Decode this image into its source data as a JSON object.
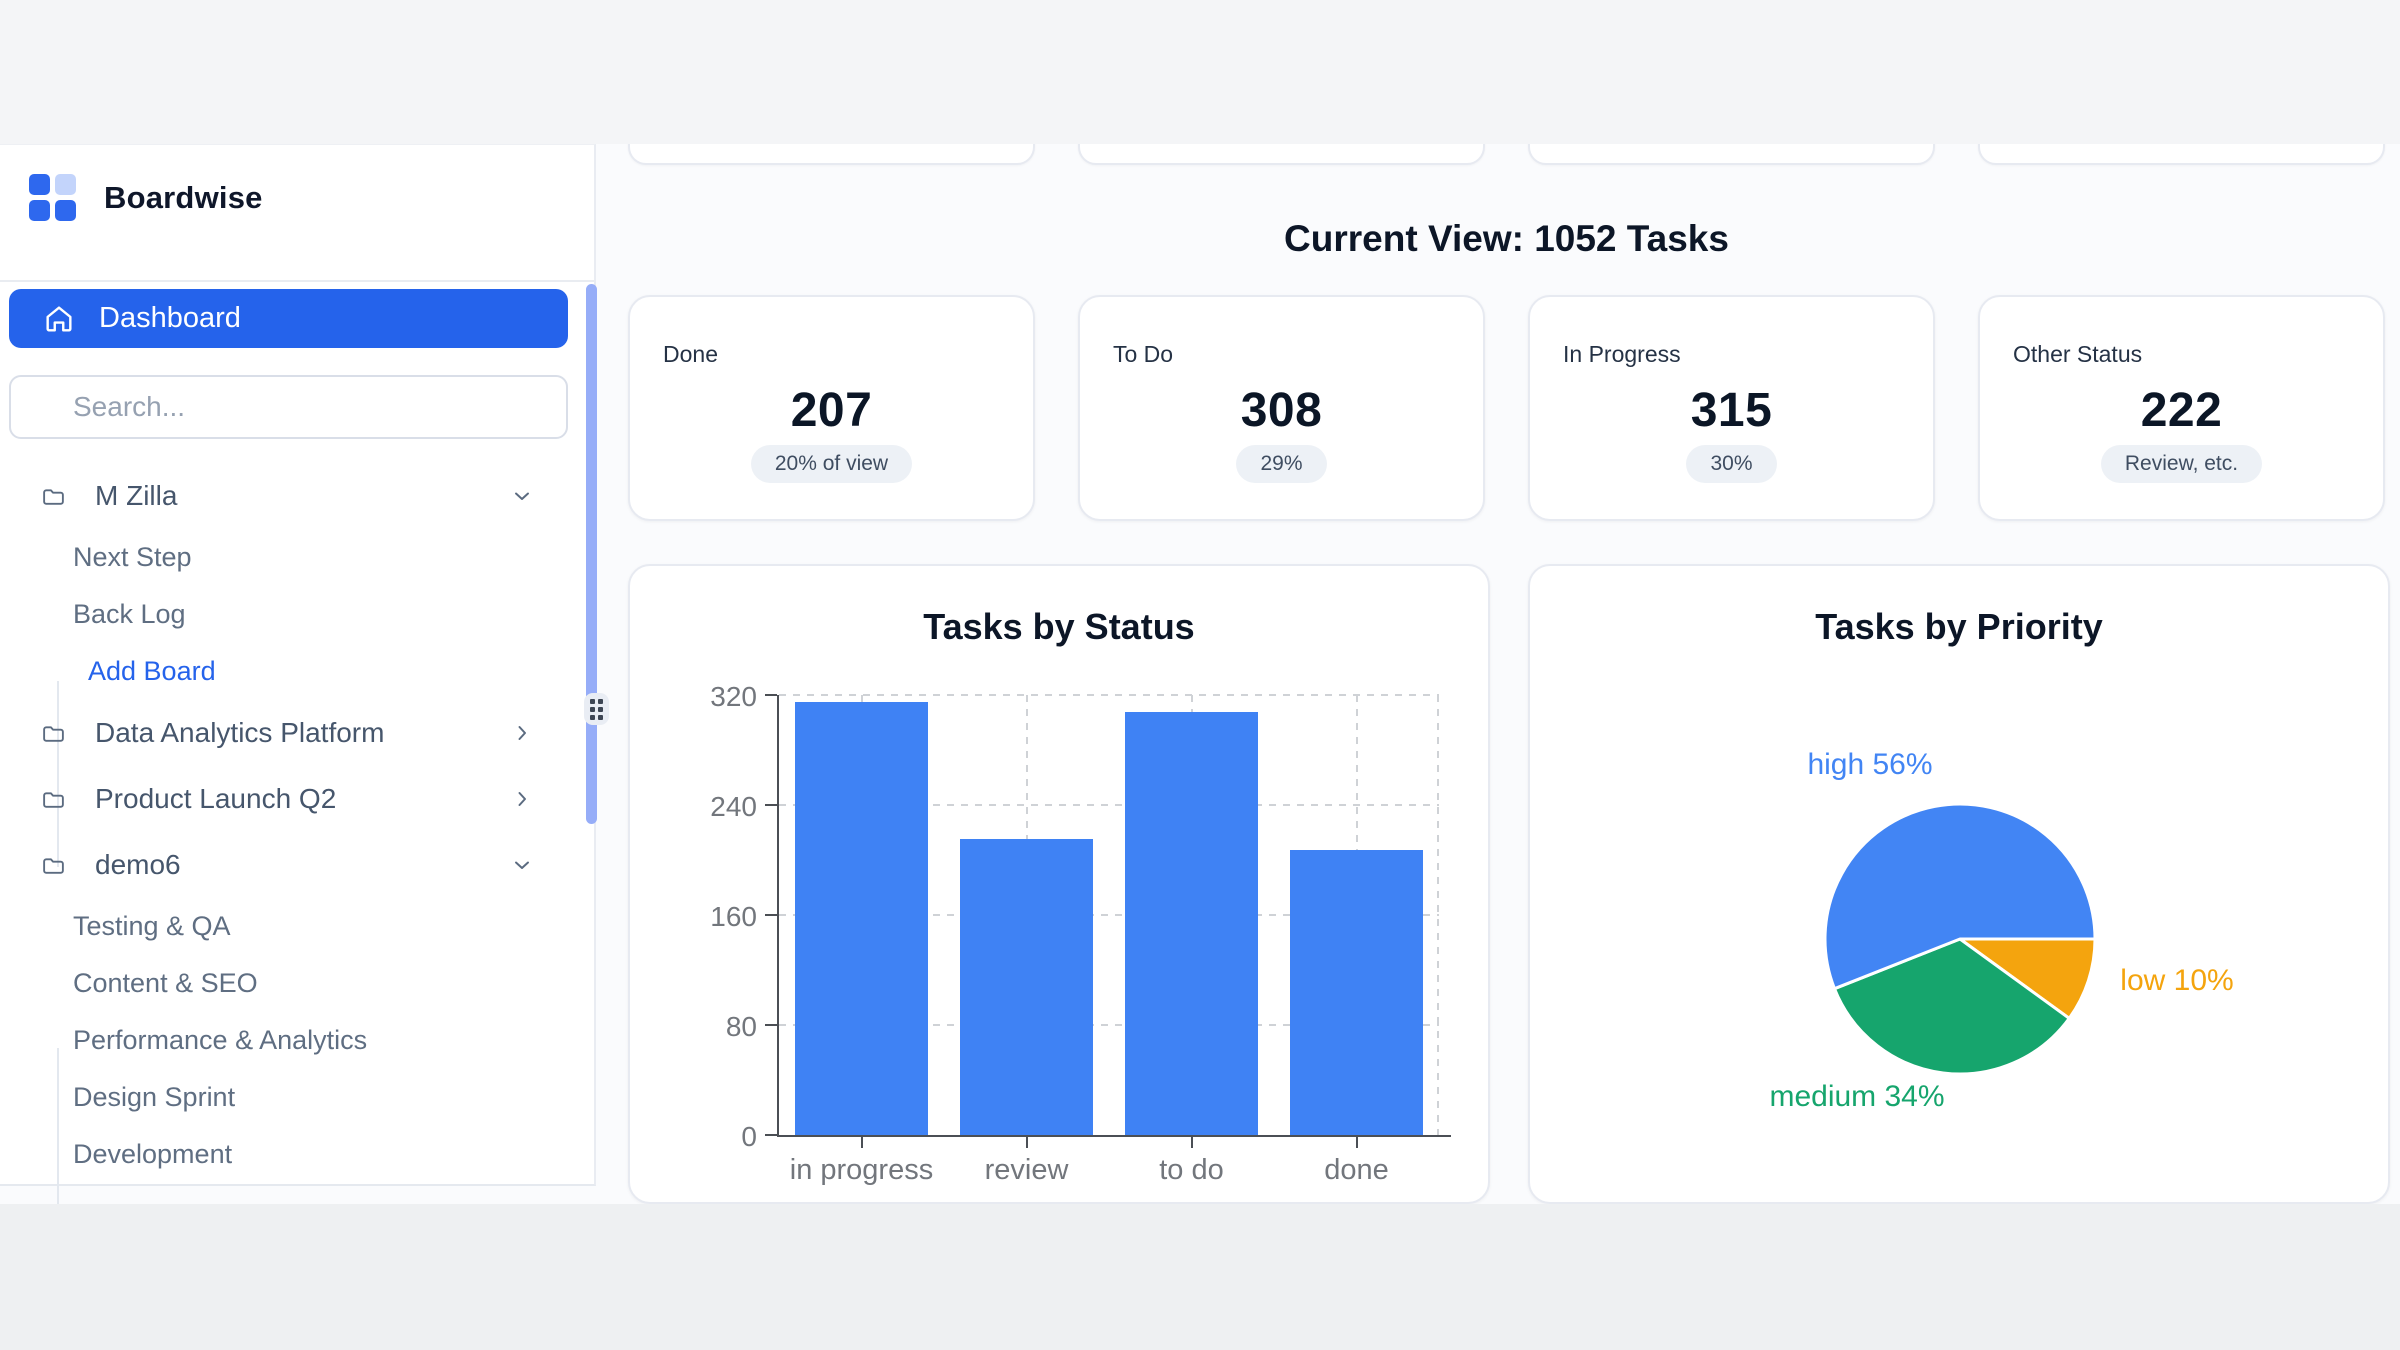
{
  "brand": {
    "name": "Boardwise",
    "logo_colors": [
      "#2e68ee",
      "#c3d4fb",
      "#2e68ee",
      "#2e68ee"
    ]
  },
  "sidebar": {
    "active_item": {
      "label": "Dashboard",
      "icon": "home-icon"
    },
    "search": {
      "placeholder": "Search..."
    },
    "sections": [
      {
        "label": "M Zilla",
        "icon": "folder-icon",
        "state": "expanded",
        "children": [
          {
            "label": "Next Step",
            "accent": false
          },
          {
            "label": "Back Log",
            "accent": false
          },
          {
            "label": "Add Board",
            "accent": true
          }
        ]
      },
      {
        "label": "Data Analytics Platform",
        "icon": "folder-icon",
        "state": "collapsed",
        "children": []
      },
      {
        "label": "Product Launch Q2",
        "icon": "folder-icon",
        "state": "collapsed",
        "children": []
      },
      {
        "label": "demo6",
        "icon": "folder-icon",
        "state": "expanded",
        "children": [
          {
            "label": "Testing & QA",
            "accent": false
          },
          {
            "label": "Content & SEO",
            "accent": false
          },
          {
            "label": "Performance & Analytics",
            "accent": false
          },
          {
            "label": "Design Sprint",
            "accent": false
          },
          {
            "label": "Development",
            "accent": false
          }
        ]
      }
    ]
  },
  "header": {
    "title": "Current View: 1052 Tasks"
  },
  "stats": [
    {
      "label": "Done",
      "value": "207",
      "badge": "20% of view"
    },
    {
      "label": "To Do",
      "value": "308",
      "badge": "29%"
    },
    {
      "label": "In Progress",
      "value": "315",
      "badge": "30%"
    },
    {
      "label": "Other Status",
      "value": "222",
      "badge": "Review, etc."
    }
  ],
  "chart_data": [
    {
      "type": "bar",
      "title": "Tasks by Status",
      "categories": [
        "in progress",
        "review",
        "to do",
        "done"
      ],
      "values": [
        315,
        215,
        308,
        207
      ],
      "xlabel": "",
      "ylabel": "",
      "ylim": [
        0,
        320
      ],
      "yticks": [
        0,
        80,
        160,
        240,
        320
      ],
      "grid": "dashed, horizontal at yticks and vertical at category centers plus right edge",
      "bar_color": "#3f82f4",
      "legend": "none"
    },
    {
      "type": "pie",
      "title": "Tasks by Priority",
      "slices": [
        {
          "name": "low",
          "pct": 10,
          "color": "#f4a40e",
          "label_text": "low 10%"
        },
        {
          "name": "medium",
          "pct": 34,
          "color": "#16a56d",
          "label_text": "medium 34%"
        },
        {
          "name": "high",
          "pct": 56,
          "color": "#4285f4",
          "label_text": "high 56%"
        }
      ],
      "start_angle_clockwise_from_top": 90,
      "slice_border_color": "#ffffff",
      "legend": "outside labels colored per slice"
    }
  ],
  "colors": {
    "primary_blue": "#2563eb",
    "bar_blue": "#3f82f4",
    "pie_blue": "#4285f4",
    "pie_green": "#16a56d",
    "pie_orange": "#f4a40e",
    "resizer_blue": "#96adf8",
    "badge_bg": "#edf1f6",
    "page_bg": "#fafbfd",
    "band_bg": "#f4f5f7",
    "footer_bg": "#eef0f2",
    "card_border": "#e7eaf1"
  }
}
